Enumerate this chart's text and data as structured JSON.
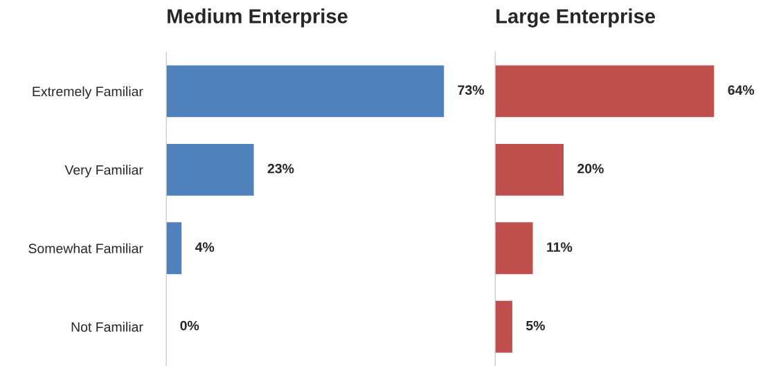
{
  "chart_data": [
    {
      "type": "bar",
      "title": "Medium Enterprise",
      "orientation": "horizontal",
      "categories": [
        "Extremely Familiar",
        "Very Familiar",
        "Somewhat Familiar",
        "Not Familiar"
      ],
      "values": [
        73,
        23,
        4,
        0
      ],
      "value_labels": [
        "73%",
        "23%",
        "4%",
        "0%"
      ],
      "color": "#4f81bd",
      "tick_labels": "y",
      "grid": false,
      "legend": false
    },
    {
      "type": "bar",
      "title": "Large Enterprise",
      "orientation": "horizontal",
      "categories": [
        null,
        null,
        null,
        null
      ],
      "values": [
        64,
        20,
        11,
        5
      ],
      "value_labels": [
        "64%",
        "20%",
        "11%",
        "5%"
      ],
      "color": "#c0504d",
      "tick_labels": false,
      "grid": false,
      "legend": false
    }
  ]
}
